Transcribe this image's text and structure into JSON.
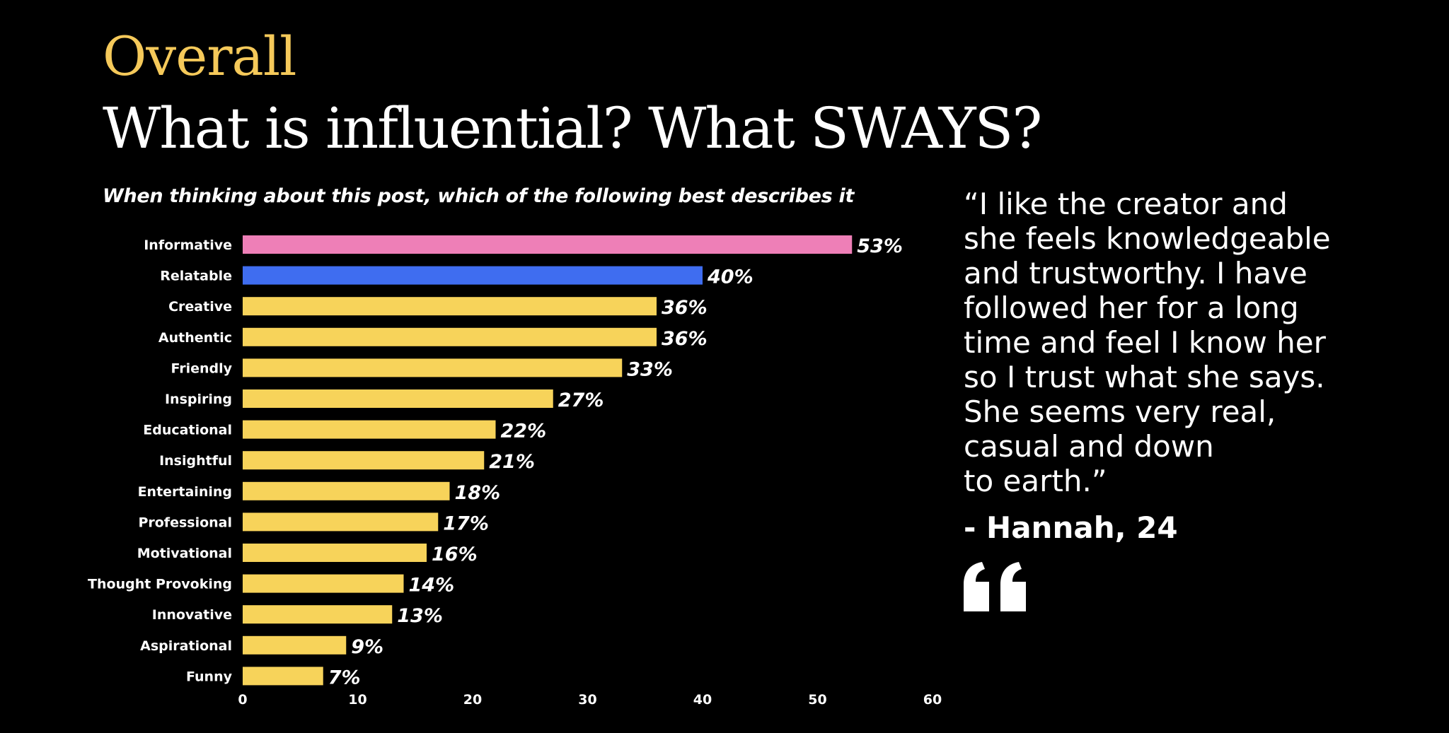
{
  "header": {
    "kicker": "Overall",
    "title": "What is influential? What SWAYS?"
  },
  "question": "When thinking about this post, which of the following best describes it",
  "quote": {
    "text": "“I like the creator and\nshe feels knowledgeable\nand trustworthy. I have\nfollowed her for a long\ntime and feel I know her\nso I trust what she says.\nShe seems very real,\ncasual and down\nto earth.”",
    "author": "- Hannah, 24",
    "icon": "quote-icon"
  },
  "colors": {
    "background": "#000000",
    "kicker": "#f5c95a",
    "bar_default": "#f7d35a",
    "bar_highlight_pink": "#ee7fb7",
    "bar_highlight_blue": "#3f6df0"
  },
  "chart_data": {
    "type": "bar",
    "orientation": "horizontal",
    "title": "When thinking about this post, which of the following best describes it",
    "xlabel": "",
    "ylabel": "",
    "xlim": [
      0,
      60
    ],
    "xticks": [
      0,
      10,
      20,
      30,
      40,
      50,
      60
    ],
    "grid": false,
    "categories": [
      "Informative",
      "Relatable",
      "Creative",
      "Authentic",
      "Friendly",
      "Inspiring",
      "Educational",
      "Insightful",
      "Entertaining",
      "Professional",
      "Motivational",
      "Thought Provoking",
      "Innovative",
      "Aspirational",
      "Funny"
    ],
    "values": [
      53,
      40,
      36,
      36,
      33,
      27,
      22,
      21,
      18,
      17,
      16,
      14,
      13,
      9,
      7
    ],
    "value_labels": [
      "53%",
      "40%",
      "36%",
      "36%",
      "33%",
      "27%",
      "22%",
      "21%",
      "18%",
      "17%",
      "16%",
      "14%",
      "13%",
      "9%",
      "7%"
    ],
    "bar_colors": [
      "#ee7fb7",
      "#3f6df0",
      "#f7d35a",
      "#f7d35a",
      "#f7d35a",
      "#f7d35a",
      "#f7d35a",
      "#f7d35a",
      "#f7d35a",
      "#f7d35a",
      "#f7d35a",
      "#f7d35a",
      "#f7d35a",
      "#f7d35a",
      "#f7d35a"
    ]
  }
}
